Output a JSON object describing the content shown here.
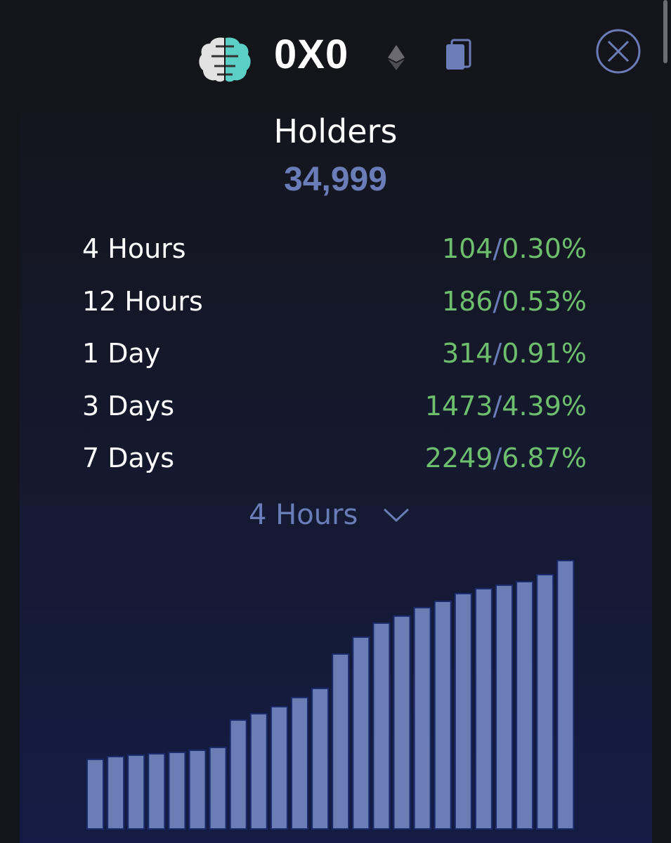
{
  "header": {
    "token_name": "0X0",
    "chain_icon": "ethereum-icon",
    "copy_icon": "copy-icon",
    "close_icon": "close-circle-icon"
  },
  "holders": {
    "title": "Holders",
    "count": "34,999"
  },
  "changes": [
    {
      "label": "4 Hours",
      "count": "104",
      "percent": "0.30%"
    },
    {
      "label": "12 Hours",
      "count": "186",
      "percent": "0.53%"
    },
    {
      "label": "1 Day",
      "count": "314",
      "percent": "0.91%"
    },
    {
      "label": "3 Days",
      "count": "1473",
      "percent": "4.39%"
    },
    {
      "label": "7 Days",
      "count": "2249",
      "percent": "6.87%"
    }
  ],
  "separator": "/",
  "timeframe": {
    "selected": "4 Hours"
  },
  "colors": {
    "accent": "#6b7db8",
    "positive": "#6dbe6d",
    "bar": "#6b7db5"
  },
  "chart_data": {
    "type": "bar",
    "title": "",
    "xlabel": "",
    "ylabel": "",
    "note": "relative heights, no axis shown",
    "values": [
      99,
      103,
      105,
      107,
      109,
      112,
      116,
      155,
      164,
      174,
      187,
      200,
      249,
      273,
      293,
      303,
      315,
      324,
      335,
      342,
      347,
      352,
      362,
      382
    ],
    "ylim": [
      0,
      382
    ]
  }
}
